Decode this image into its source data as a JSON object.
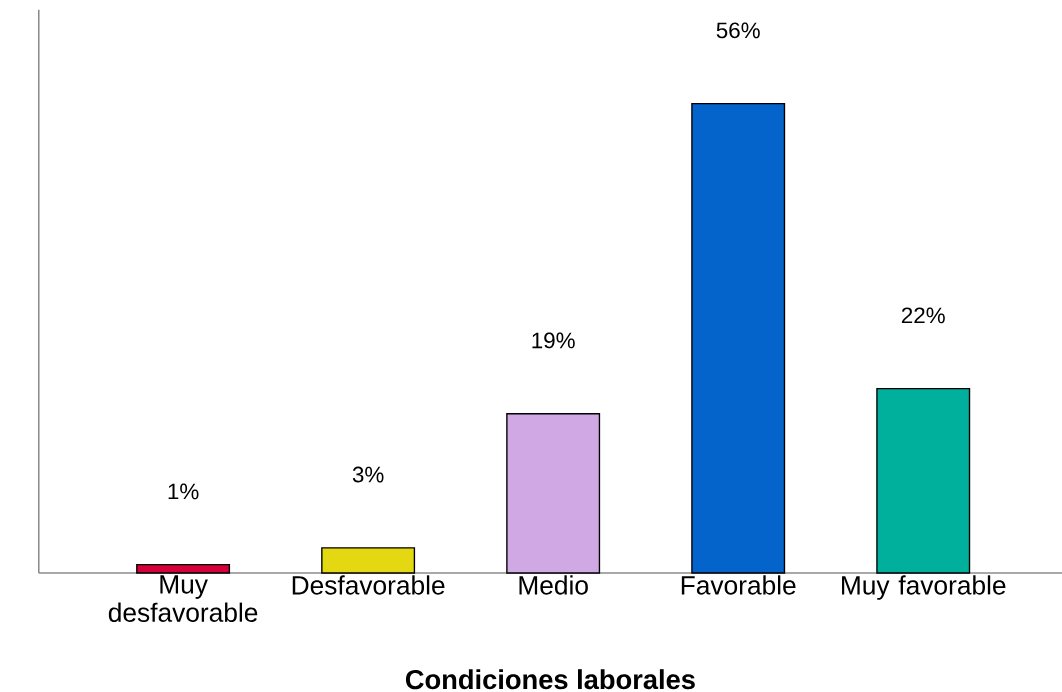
{
  "chart_data": {
    "type": "bar",
    "xlabel": "Condiciones laborales",
    "categories": [
      "Muy desfavorable",
      "Desfavorable",
      "Medio",
      "Favorable",
      "Muy favorable"
    ],
    "values": [
      1,
      3,
      19,
      56,
      22
    ],
    "colors": [
      "#d4003a",
      "#e4d812",
      "#d0a8e4",
      "#0464cc",
      "#00b09c"
    ],
    "value_labels": [
      "1%",
      "3%",
      "19%",
      "56%",
      "22%"
    ],
    "tick_labels": "x"
  }
}
